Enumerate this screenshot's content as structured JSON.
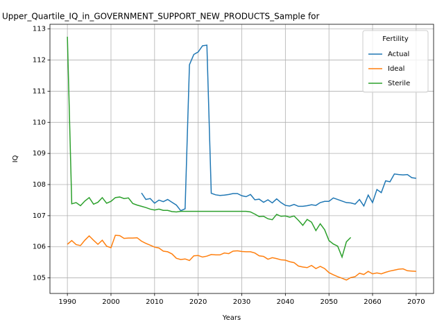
{
  "chart_data": {
    "type": "line",
    "title": "Upper_Quartile_IQ_in_GOVERNMENT_SUPPORT_NEW_PRODUCTS_Sample for",
    "xlabel": "Years",
    "ylabel": "IQ",
    "legend_title": "Fertility",
    "legend": "upper right",
    "grid": true,
    "x": [
      1990,
      1991,
      1992,
      1993,
      1994,
      1995,
      1996,
      1997,
      1998,
      1999,
      2000,
      2001,
      2002,
      2003,
      2004,
      2005,
      2006,
      2007,
      2008,
      2009,
      2010,
      2011,
      2012,
      2013,
      2014,
      2015,
      2016,
      2017,
      2018,
      2019,
      2020,
      2021,
      2022,
      2023,
      2024,
      2025,
      2026,
      2027,
      2028,
      2029,
      2030,
      2031,
      2032,
      2033,
      2034,
      2035,
      2036,
      2037,
      2038,
      2039,
      2040,
      2041,
      2042,
      2043,
      2044,
      2045,
      2046,
      2047,
      2048,
      2049,
      2050,
      2051,
      2052,
      2053,
      2054,
      2055,
      2056,
      2057,
      2058,
      2059,
      2060,
      2061,
      2062,
      2063,
      2064,
      2065,
      2066,
      2067,
      2068,
      2069,
      2070
    ],
    "series": [
      {
        "name": "Actual",
        "color": "#1f77b4",
        "values": [
          null,
          null,
          null,
          null,
          null,
          null,
          null,
          null,
          null,
          null,
          null,
          null,
          null,
          null,
          null,
          null,
          null,
          107.73,
          107.52,
          107.55,
          107.4,
          107.5,
          107.45,
          107.52,
          107.43,
          107.34,
          107.16,
          107.22,
          111.85,
          112.18,
          112.26,
          112.46,
          112.48,
          107.72,
          107.67,
          107.65,
          107.66,
          107.68,
          107.71,
          107.71,
          107.64,
          107.61,
          107.68,
          107.51,
          107.53,
          107.43,
          107.51,
          107.41,
          107.54,
          107.42,
          107.33,
          107.31,
          107.36,
          107.3,
          107.3,
          107.32,
          107.35,
          107.33,
          107.42,
          107.46,
          107.46,
          107.57,
          107.52,
          107.47,
          107.42,
          107.41,
          107.37,
          107.52,
          107.31,
          107.66,
          107.42,
          107.84,
          107.74,
          108.12,
          108.09,
          108.34,
          108.32,
          108.31,
          108.32,
          108.22,
          108.2
        ]
      },
      {
        "name": "Ideal",
        "color": "#ff7f0e",
        "values": [
          106.08,
          106.2,
          106.07,
          106.04,
          106.21,
          106.35,
          106.21,
          106.08,
          106.21,
          106.02,
          105.97,
          106.37,
          106.36,
          106.27,
          106.28,
          106.28,
          106.29,
          106.18,
          106.11,
          106.05,
          105.99,
          105.96,
          105.86,
          105.84,
          105.77,
          105.63,
          105.59,
          105.61,
          105.56,
          105.71,
          105.72,
          105.67,
          105.7,
          105.75,
          105.74,
          105.74,
          105.8,
          105.78,
          105.86,
          105.87,
          105.85,
          105.84,
          105.84,
          105.8,
          105.71,
          105.69,
          105.6,
          105.65,
          105.62,
          105.58,
          105.57,
          105.52,
          105.49,
          105.38,
          105.35,
          105.33,
          105.4,
          105.3,
          105.37,
          105.3,
          105.17,
          105.1,
          105.04,
          104.99,
          104.93,
          105.01,
          105.04,
          105.15,
          105.11,
          105.21,
          105.13,
          105.16,
          105.13,
          105.18,
          105.22,
          105.25,
          105.28,
          105.29,
          105.23,
          105.22,
          105.21
        ]
      },
      {
        "name": "Sterile",
        "color": "#2ca02c",
        "values": [
          112.75,
          107.38,
          107.42,
          107.32,
          107.47,
          107.58,
          107.37,
          107.43,
          107.58,
          107.4,
          107.46,
          107.58,
          107.6,
          107.55,
          107.57,
          107.39,
          107.34,
          107.3,
          107.26,
          107.21,
          107.18,
          107.21,
          107.17,
          107.17,
          107.13,
          107.12,
          107.14,
          107.14,
          107.14,
          107.14,
          107.14,
          107.14,
          107.14,
          107.14,
          107.14,
          107.14,
          107.14,
          107.14,
          107.14,
          107.14,
          107.14,
          107.14,
          107.12,
          107.05,
          106.97,
          106.98,
          106.9,
          106.87,
          107.04,
          106.98,
          106.99,
          106.95,
          106.99,
          106.85,
          106.69,
          106.88,
          106.79,
          106.52,
          106.74,
          106.55,
          106.2,
          106.09,
          106.02,
          105.67,
          106.16,
          106.3,
          null,
          null,
          null,
          null,
          null,
          null,
          null,
          null,
          null,
          null,
          null,
          null,
          null,
          null,
          null
        ]
      }
    ],
    "xlim": [
      1986,
      2074
    ],
    "xticks": [
      1990,
      2000,
      2010,
      2020,
      2030,
      2040,
      2050,
      2060,
      2070
    ],
    "ylim": [
      104.5,
      113.15
    ],
    "yticks": [
      105,
      106,
      107,
      108,
      109,
      110,
      111,
      112,
      113
    ]
  }
}
